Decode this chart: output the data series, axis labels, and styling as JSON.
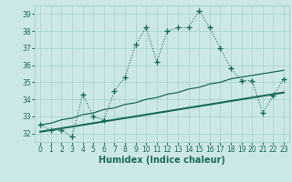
{
  "xlabel": "Humidex (Indice chaleur)",
  "background_color": "#cce8e6",
  "grid_color": "#aad4d0",
  "line_color": "#1a6b5a",
  "x_data": [
    0,
    1,
    2,
    3,
    4,
    5,
    6,
    7,
    8,
    9,
    10,
    11,
    12,
    13,
    14,
    15,
    16,
    17,
    18,
    19,
    20,
    21,
    22,
    23
  ],
  "y_main": [
    32.5,
    32.2,
    32.2,
    31.8,
    34.3,
    33.0,
    32.8,
    34.5,
    35.3,
    37.2,
    38.2,
    36.2,
    38.0,
    38.2,
    38.2,
    39.2,
    38.2,
    37.0,
    35.8,
    35.1,
    35.1,
    33.2,
    34.2,
    35.2
  ],
  "y_trend_upper": [
    32.5,
    32.6,
    32.8,
    32.9,
    33.1,
    33.2,
    33.4,
    33.5,
    33.7,
    33.8,
    34.0,
    34.1,
    34.3,
    34.4,
    34.6,
    34.7,
    34.9,
    35.0,
    35.2,
    35.3,
    35.4,
    35.5,
    35.6,
    35.7
  ],
  "y_trend_lower": [
    32.1,
    32.2,
    32.3,
    32.4,
    32.5,
    32.6,
    32.7,
    32.8,
    32.9,
    33.0,
    33.1,
    33.2,
    33.3,
    33.4,
    33.5,
    33.6,
    33.7,
    33.8,
    33.9,
    34.0,
    34.1,
    34.2,
    34.3,
    34.4
  ],
  "ylim": [
    31.5,
    39.5
  ],
  "xlim": [
    -0.5,
    23.5
  ],
  "yticks": [
    32,
    33,
    34,
    35,
    36,
    37,
    38,
    39
  ],
  "xticks": [
    0,
    1,
    2,
    3,
    4,
    5,
    6,
    7,
    8,
    9,
    10,
    11,
    12,
    13,
    14,
    15,
    16,
    17,
    18,
    19,
    20,
    21,
    22,
    23
  ],
  "tick_fontsize": 5.5,
  "label_fontsize": 7.0
}
